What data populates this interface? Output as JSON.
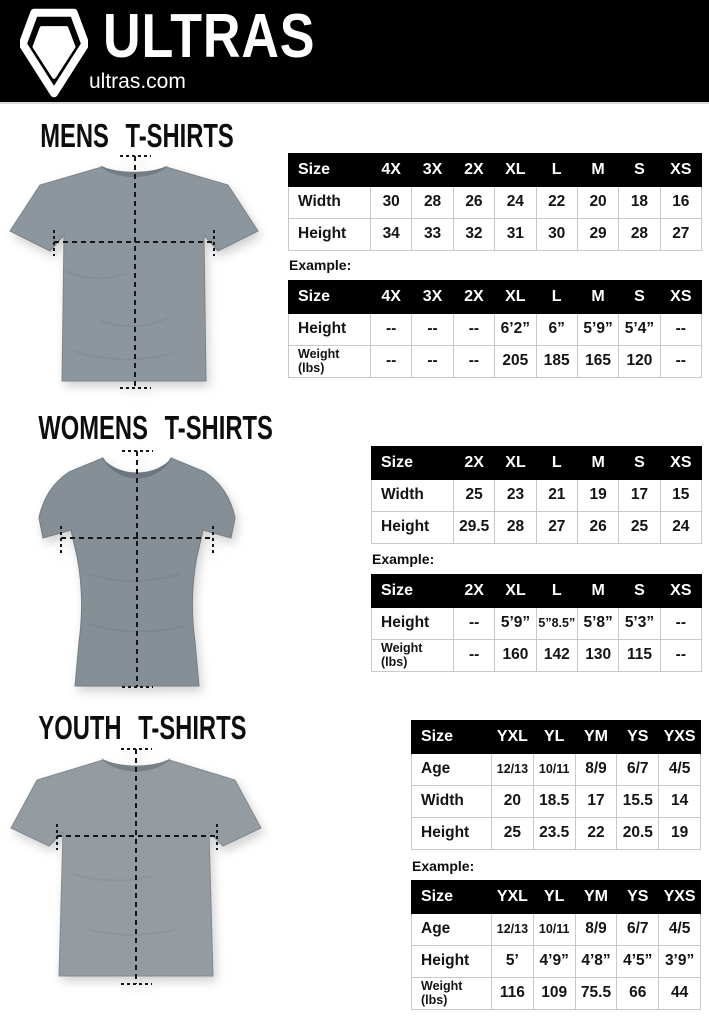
{
  "header": {
    "brand": "ULTRAS",
    "site": "ultras.com",
    "background": "#000000",
    "logo_icon": "pentagon-shield"
  },
  "colors": {
    "table_header_bg": "#000000",
    "table_border": "#c9c9c9",
    "mens_shirt": "#8d959d",
    "womens_shirt": "#868e96",
    "youth_shirt": "#949ba1"
  },
  "sections": {
    "mens": {
      "title": "MENS T-SHIRTS",
      "example_label": "Example:",
      "size_table": {
        "columns": [
          "Size",
          "4X",
          "3X",
          "2X",
          "XL",
          "L",
          "M",
          "S",
          "XS"
        ],
        "rows": [
          {
            "label": "Width",
            "values": [
              "30",
              "28",
              "26",
              "24",
              "22",
              "20",
              "18",
              "16"
            ]
          },
          {
            "label": "Height",
            "values": [
              "34",
              "33",
              "32",
              "31",
              "30",
              "29",
              "28",
              "27"
            ]
          }
        ]
      },
      "example_table": {
        "columns": [
          "Size",
          "4X",
          "3X",
          "2X",
          "XL",
          "L",
          "M",
          "S",
          "XS"
        ],
        "rows": [
          {
            "label": "Height",
            "values": [
              "--",
              "--",
              "--",
              "6’2”",
              "6”",
              "5’9”",
              "5’4”",
              "--"
            ]
          },
          {
            "label": "Weight\n(lbs)",
            "values": [
              "--",
              "--",
              "--",
              "205",
              "185",
              "165",
              "120",
              "--"
            ]
          }
        ]
      }
    },
    "womens": {
      "title": "WOMENS T-SHIRTS",
      "example_label": "Example:",
      "size_table": {
        "columns": [
          "Size",
          "2X",
          "XL",
          "L",
          "M",
          "S",
          "XS"
        ],
        "rows": [
          {
            "label": "Width",
            "values": [
              "25",
              "23",
              "21",
              "19",
              "17",
              "15"
            ]
          },
          {
            "label": "Height",
            "values": [
              "29.5",
              "28",
              "27",
              "26",
              "25",
              "24"
            ]
          }
        ]
      },
      "example_table": {
        "columns": [
          "Size",
          "2X",
          "XL",
          "L",
          "M",
          "S",
          "XS"
        ],
        "rows": [
          {
            "label": "Height",
            "values": [
              "--",
              "5’9”",
              "5”8.5”",
              "5’8”",
              "5’3”",
              "--"
            ]
          },
          {
            "label": "Weight\n(lbs)",
            "values": [
              "--",
              "160",
              "142",
              "130",
              "115",
              "--"
            ]
          }
        ]
      }
    },
    "youth": {
      "title": "YOUTH T-SHIRTS",
      "example_label": "Example:",
      "size_table": {
        "columns": [
          "Size",
          "YXL",
          "YL",
          "YM",
          "YS",
          "YXS"
        ],
        "rows": [
          {
            "label": "Age",
            "values": [
              "12/13",
              "10/11",
              "8/9",
              "6/7",
              "4/5"
            ]
          },
          {
            "label": "Width",
            "values": [
              "20",
              "18.5",
              "17",
              "15.5",
              "14"
            ]
          },
          {
            "label": "Height",
            "values": [
              "25",
              "23.5",
              "22",
              "20.5",
              "19"
            ]
          }
        ]
      },
      "example_table": {
        "columns": [
          "Size",
          "YXL",
          "YL",
          "YM",
          "YS",
          "YXS"
        ],
        "rows": [
          {
            "label": "Age",
            "values": [
              "12/13",
              "10/11",
              "8/9",
              "6/7",
              "4/5"
            ]
          },
          {
            "label": "Height",
            "values": [
              "5’",
              "4’9”",
              "4’8”",
              "4’5”",
              "3’9”"
            ]
          },
          {
            "label": "Weight\n(lbs)",
            "values": [
              "116",
              "109",
              "75.5",
              "66",
              "44"
            ]
          }
        ]
      }
    }
  }
}
